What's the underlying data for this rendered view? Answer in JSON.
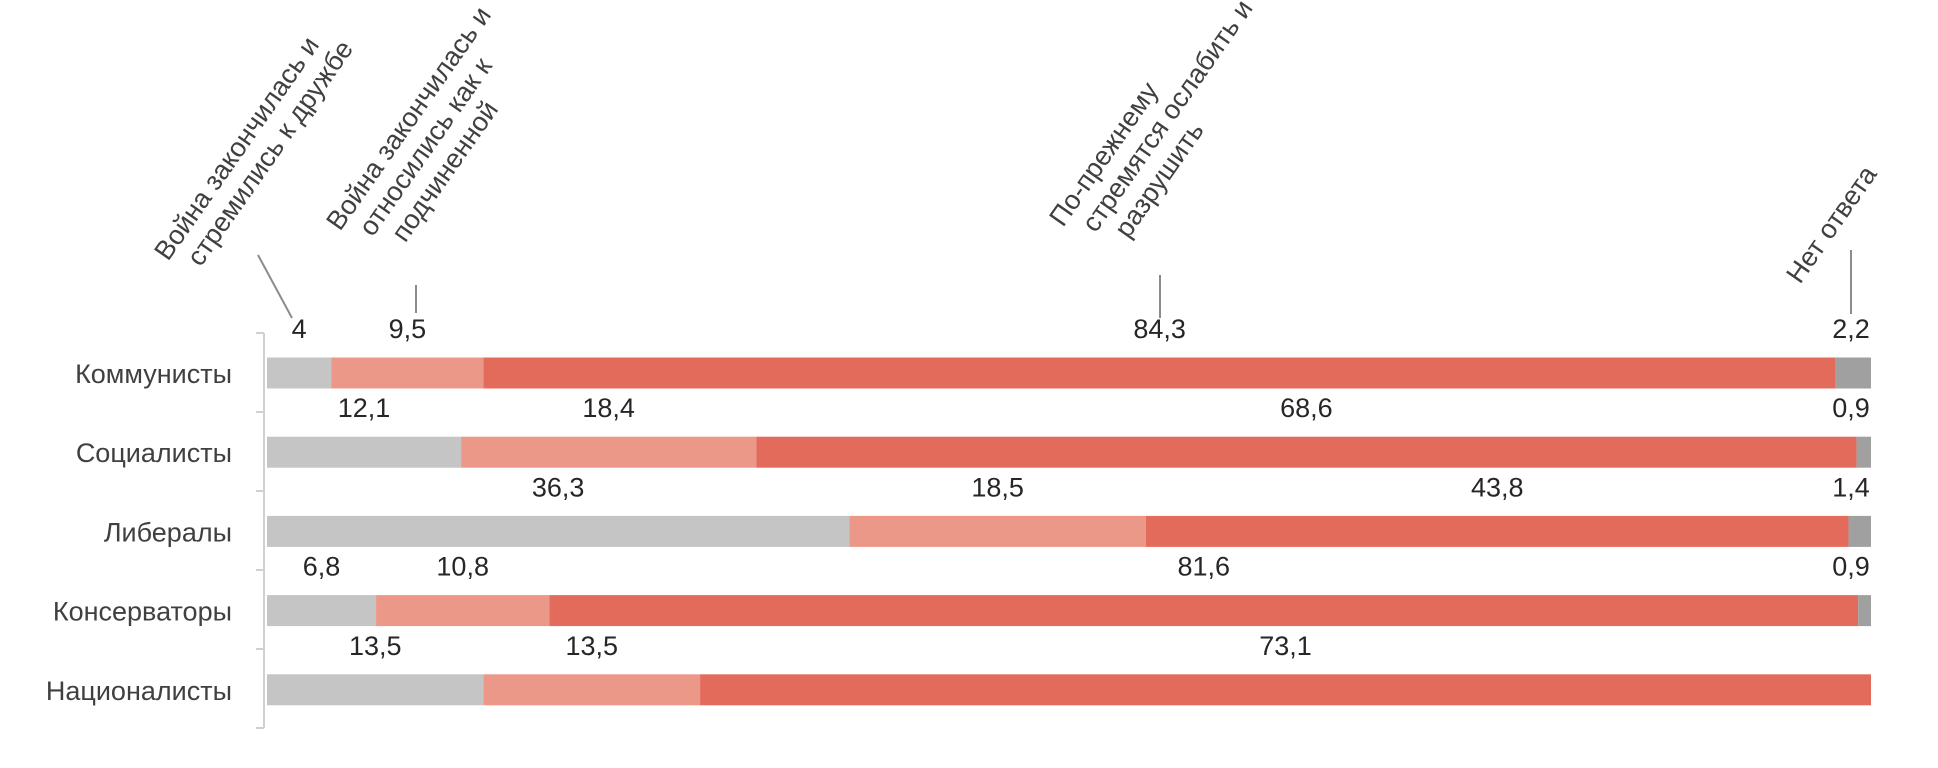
{
  "chart_data": {
    "type": "bar",
    "orientation": "horizontal",
    "stacked": true,
    "categories": [
      "Коммунисты",
      "Социалисты",
      "Либералы",
      "Консерваторы",
      "Националисты"
    ],
    "series": [
      {
        "name": "Война закончилась и стремились к дружбе",
        "values": [
          4,
          12.1,
          36.3,
          6.8,
          13.5
        ],
        "labels": [
          "4",
          "12,1",
          "36,3",
          "6,8",
          "13,5"
        ],
        "color": "#c5c5c5"
      },
      {
        "name": "Война закончилась и относились как к подчиненной",
        "values": [
          9.5,
          18.4,
          18.5,
          10.8,
          13.5
        ],
        "labels": [
          "9,5",
          "18,4",
          "18,5",
          "10,8",
          "13,5"
        ],
        "color": "#ec9888"
      },
      {
        "name": "По-прежнему стремятся ослабить и разрушить",
        "values": [
          84.3,
          68.6,
          43.8,
          81.6,
          73.1
        ],
        "labels": [
          "84,3",
          "68,6",
          "43,8",
          "81,6",
          "73,1"
        ],
        "color": "#e36b5c"
      },
      {
        "name": "Нет ответа",
        "values": [
          2.2,
          0.9,
          1.4,
          0.9,
          0
        ],
        "labels": [
          "2,2",
          "0,9",
          "1,4",
          "0,9",
          ""
        ],
        "color": "#a0a0a0"
      }
    ],
    "legend": {
      "placement": "top",
      "entries": [
        "Война закончилась и стремились к дружбе",
        "Война закончилась и относились как к подчиненной",
        "По-прежнему стремятся ослабить и разрушить",
        "Нет ответа"
      ]
    },
    "title": "",
    "xlabel": "",
    "ylabel": "",
    "grid": false,
    "axis_color": "#d0d0d0",
    "leader_color": "#8c8c8c"
  }
}
